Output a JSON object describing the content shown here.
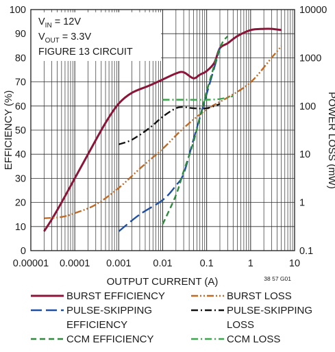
{
  "chart_data": {
    "type": "line",
    "xlabel": "OUTPUT CURRENT (A)",
    "ylabel_left": "EFFICIENCY (%)",
    "ylabel_right": "POWER LOSS (mW)",
    "x_scale": "log",
    "xlim": [
      1e-05,
      10
    ],
    "ylim_left": [
      0,
      100
    ],
    "ylim_right": [
      0.1,
      10000
    ],
    "y_right_scale": "log",
    "grid": true,
    "x_ticks": [
      "0.00001",
      "0.0001",
      "0.001",
      "0.01",
      "0.1",
      "1",
      "10"
    ],
    "y_left_ticks": [
      "0",
      "10",
      "20",
      "30",
      "40",
      "50",
      "60",
      "70",
      "80",
      "90",
      "100"
    ],
    "y_right_ticks": [
      "0.1",
      "1",
      "10",
      "100",
      "1000",
      "10000"
    ],
    "annotation": {
      "vin_main": "V",
      "vin_sub": "IN",
      "vin_rest": " = 12V",
      "vout_main": "V",
      "vout_sub": "OUT",
      "vout_rest": " = 3.3V",
      "figure": "FIGURE 13 CIRCUIT"
    },
    "figure_code": "38 57 G01",
    "series": [
      {
        "name": "BURST EFFICIENCY",
        "axis": "left",
        "color": "#8b1538",
        "dash": "solid",
        "x": [
          2e-05,
          3e-05,
          5e-05,
          0.0001,
          0.0002,
          0.0005,
          0.001,
          0.002,
          0.005,
          0.01,
          0.02,
          0.03,
          0.05,
          0.07,
          0.1,
          0.15,
          0.2,
          0.3,
          0.5,
          1,
          2,
          3,
          5
        ],
        "y": [
          8,
          13,
          20,
          30,
          40,
          53,
          61,
          65.5,
          68.5,
          71,
          73.5,
          74,
          71.5,
          73,
          74.5,
          78,
          84,
          86,
          89,
          91.5,
          92,
          92,
          91.5
        ]
      },
      {
        "name": "BURST LOSS",
        "axis": "right",
        "color": "#c06a25",
        "dash": "dashdotdot",
        "x": [
          2e-05,
          5e-05,
          0.0001,
          0.0003,
          0.001,
          0.003,
          0.01,
          0.03,
          0.1,
          0.3,
          1,
          3,
          5
        ],
        "y": [
          0.47,
          0.5,
          0.6,
          0.9,
          2,
          5,
          13,
          35,
          85,
          150,
          310,
          1000,
          1750
        ]
      },
      {
        "name": "PULSE-SKIPPING EFFICIENCY",
        "axis": "left",
        "color": "#1f4fa3",
        "dash": "longdash",
        "x": [
          0.001,
          0.003,
          0.01,
          0.02,
          0.03,
          0.05,
          0.1,
          0.2
        ],
        "y": [
          8,
          15,
          21,
          27,
          32,
          46,
          65,
          84
        ]
      },
      {
        "name": "PULSE-SKIPPING LOSS",
        "axis": "right",
        "color": "#111111",
        "dash": "dashdot",
        "x": [
          0.001,
          0.002,
          0.005,
          0.01,
          0.02,
          0.03,
          0.05,
          0.1,
          0.2
        ],
        "y": [
          16,
          20,
          35,
          60,
          90,
          95,
          90,
          90,
          110
        ]
      },
      {
        "name": "CCM EFFICIENCY",
        "axis": "left",
        "color": "#2e8b3e",
        "dash": "dash",
        "x": [
          0.01,
          0.02,
          0.03,
          0.05,
          0.1,
          0.2,
          0.3
        ],
        "y": [
          11,
          23,
          33,
          45,
          66,
          84,
          89
        ]
      },
      {
        "name": "CCM LOSS",
        "axis": "right",
        "color": "#3aa84a",
        "dash": "dashdot",
        "x": [
          0.01,
          0.03,
          0.1,
          0.2,
          0.4
        ],
        "y": [
          135,
          135,
          135,
          140,
          160
        ]
      }
    ],
    "legend": [
      {
        "label": "BURST EFFICIENCY",
        "series": 0
      },
      {
        "label": "BURST LOSS",
        "series": 1
      },
      {
        "label": "PULSE-SKIPPING",
        "label2": "EFFICIENCY",
        "series": 2
      },
      {
        "label": "PULSE-SKIPPING",
        "label2": "LOSS",
        "series": 3
      },
      {
        "label": "CCM EFFICIENCY",
        "series": 4
      },
      {
        "label": "CCM LOSS",
        "series": 5
      }
    ]
  }
}
